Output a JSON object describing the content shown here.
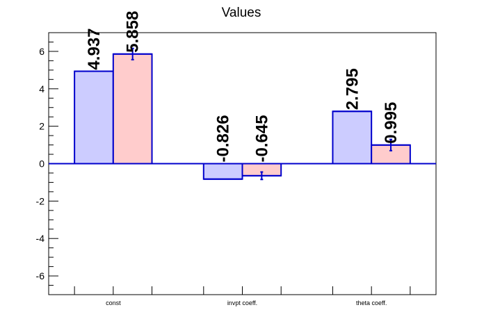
{
  "chart_data": {
    "type": "bar",
    "title": "Values",
    "categories": [
      "const",
      "invpt coeff.",
      "theta coeff."
    ],
    "series": [
      {
        "values": [
          4.937,
          -0.826,
          2.795
        ],
        "labels": [
          "4.937",
          "-0.826",
          "2.795"
        ],
        "errors": [
          0,
          0,
          0
        ],
        "fill": "#ccccff",
        "stroke": "#0000cc"
      },
      {
        "values": [
          5.858,
          -0.645,
          0.995
        ],
        "labels": [
          "5.858",
          "-0.645",
          "0.995"
        ],
        "errors": [
          0.3,
          0.2,
          0.3
        ],
        "fill": "#ffcccc",
        "stroke": "#0000cc"
      }
    ],
    "ylim": [
      -7,
      7
    ],
    "yticks": [
      -6,
      -4,
      -2,
      0,
      2,
      4,
      6
    ],
    "xlabel": "",
    "ylabel": "",
    "grid": false,
    "legend": "none"
  }
}
